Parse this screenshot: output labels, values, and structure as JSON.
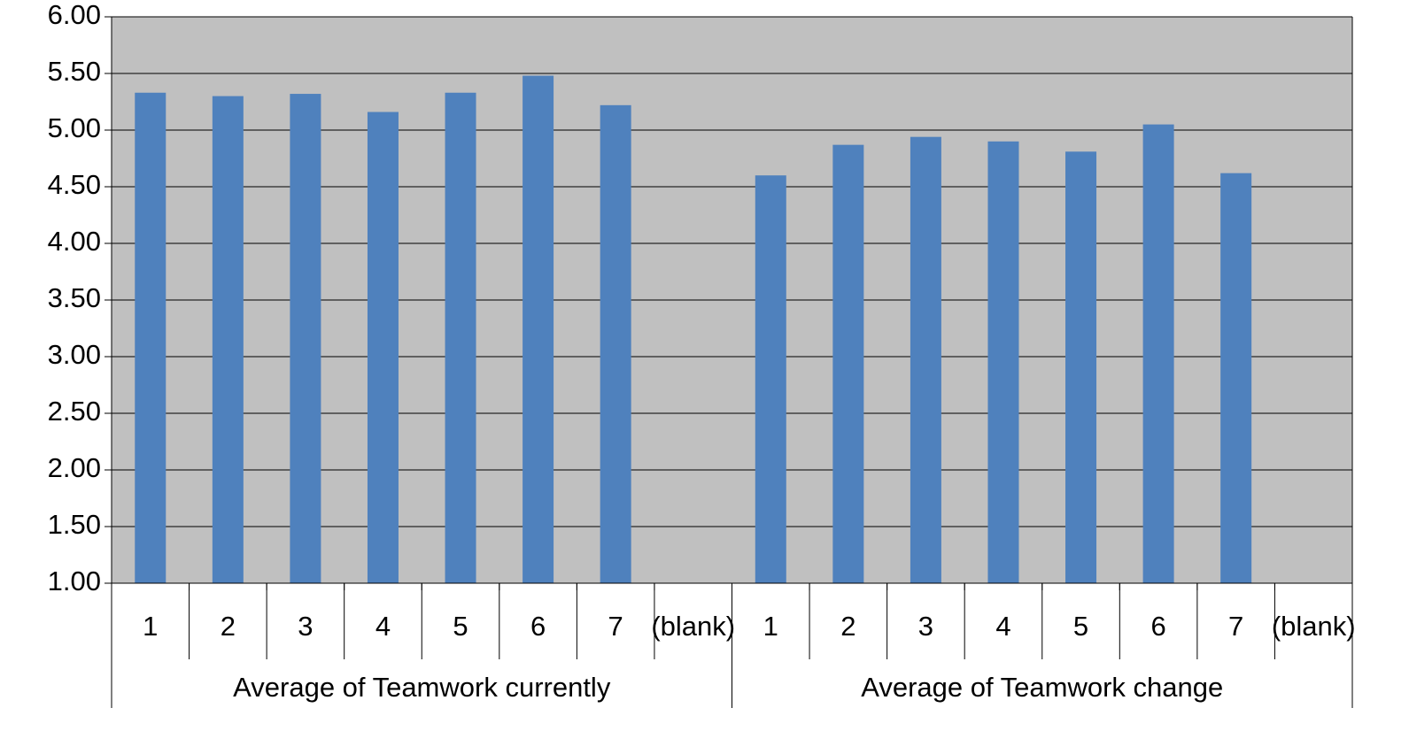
{
  "chart_data": {
    "type": "bar",
    "color": "#4f81bd",
    "ylim": [
      1,
      6
    ],
    "yticks": [
      {
        "value": 1,
        "label": "1.00"
      },
      {
        "value": 1.5,
        "label": "1.50"
      },
      {
        "value": 2,
        "label": "2.00"
      },
      {
        "value": 2.5,
        "label": "2.50"
      },
      {
        "value": 3,
        "label": "3.00"
      },
      {
        "value": 3.5,
        "label": "3.50"
      },
      {
        "value": 4,
        "label": "4.00"
      },
      {
        "value": 4.5,
        "label": "4.50"
      },
      {
        "value": 5,
        "label": "5.00"
      },
      {
        "value": 5.5,
        "label": "5.50"
      },
      {
        "value": 6,
        "label": "6.00"
      }
    ],
    "grid": true,
    "groups": [
      {
        "label": "Average of Teamwork currently",
        "categories": [
          "1",
          "2",
          "3",
          "4",
          "5",
          "6",
          "7",
          "(blank)"
        ],
        "values": [
          5.33,
          5.3,
          5.32,
          5.16,
          5.33,
          5.48,
          5.22,
          null
        ]
      },
      {
        "label": "Average of Teamwork change",
        "categories": [
          "1",
          "2",
          "3",
          "4",
          "5",
          "6",
          "7",
          "(blank)"
        ],
        "values": [
          4.6,
          4.87,
          4.94,
          4.9,
          4.81,
          5.05,
          4.62,
          null
        ]
      }
    ]
  }
}
